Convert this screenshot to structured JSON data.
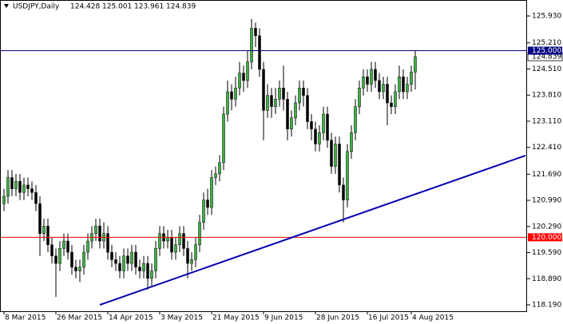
{
  "chart_data": {
    "type": "candlestick",
    "symbol": "USDJPY,Daily",
    "categories": [
      "8 Mar 2015",
      null,
      null,
      null,
      null,
      null,
      null,
      null,
      null,
      null,
      null,
      null,
      null,
      "26 Mar 2015",
      null,
      null,
      null,
      null,
      null,
      null,
      null,
      null,
      null,
      null,
      null,
      null,
      "14 Apr 2015",
      null,
      null,
      null,
      null,
      null,
      null,
      null,
      null,
      null,
      null,
      null,
      null,
      "3 May 2015",
      null,
      null,
      null,
      null,
      null,
      null,
      null,
      null,
      null,
      null,
      null,
      null,
      "21 May 2015",
      null,
      null,
      null,
      null,
      null,
      null,
      null,
      null,
      null,
      null,
      null,
      null,
      "9 Jun 2015",
      null,
      null,
      null,
      null,
      null,
      null,
      null,
      null,
      null,
      null,
      null,
      null,
      "28 Jun 2015",
      null,
      null,
      null,
      null,
      null,
      null,
      null,
      null,
      null,
      null,
      null,
      null,
      "16 Jul 2015",
      null,
      null,
      null,
      null,
      null,
      null,
      null,
      null,
      null,
      null,
      "4 Aug 2015",
      null
    ],
    "open": [
      120.9,
      121.1,
      121.6,
      121.3,
      121.5,
      121.2,
      121.4,
      121.3,
      121.2,
      120.9,
      120.1,
      120.3,
      119.8,
      119.5,
      119.3,
      119.7,
      119.9,
      119.6,
      119.2,
      119.1,
      119.2,
      119.6,
      119.9,
      120.1,
      120.3,
      119.9,
      120.1,
      119.6,
      119.4,
      119.3,
      119.1,
      119.5,
      119.3,
      119.6,
      119.2,
      119.1,
      119.3,
      118.9,
      119.1,
      119.7,
      120.1,
      119.9,
      120.0,
      119.6,
      119.8,
      120.1,
      119.7,
      119.3,
      119.4,
      119.8,
      120.4,
      121.0,
      120.8,
      121.6,
      121.7,
      122.0,
      123.3,
      123.9,
      123.7,
      124.0,
      124.4,
      124.2,
      124.7,
      125.6,
      125.4,
      124.5,
      123.4,
      123.8,
      123.5,
      123.7,
      124.0,
      123.7,
      122.9,
      123.2,
      123.6,
      124.0,
      123.8,
      123.1,
      122.9,
      122.5,
      122.8,
      123.3,
      122.6,
      121.9,
      122.5,
      121.4,
      121.0,
      122.3,
      122.8,
      123.5,
      124.0,
      124.3,
      124.1,
      124.5,
      124.2,
      123.9,
      124.1,
      123.6,
      123.5,
      123.9,
      124.3,
      123.9,
      124.1,
      124.428
    ],
    "high": [
      121.3,
      121.8,
      121.8,
      121.7,
      121.7,
      121.6,
      121.6,
      121.5,
      121.4,
      121.1,
      120.5,
      120.5,
      120.0,
      119.7,
      119.9,
      120.1,
      120.1,
      119.8,
      119.4,
      119.4,
      119.8,
      120.1,
      120.3,
      120.5,
      120.5,
      120.4,
      120.3,
      119.8,
      119.6,
      119.5,
      119.7,
      119.7,
      119.8,
      119.8,
      119.4,
      119.5,
      119.5,
      119.3,
      119.9,
      120.3,
      120.3,
      120.2,
      120.2,
      120.0,
      120.3,
      120.3,
      119.9,
      119.6,
      120.0,
      120.6,
      121.2,
      121.3,
      121.8,
      121.9,
      122.2,
      123.5,
      124.2,
      124.1,
      124.3,
      124.7,
      124.6,
      125.0,
      125.85,
      125.75,
      125.6,
      124.7,
      124.1,
      124.0,
      124.0,
      124.2,
      124.6,
      123.9,
      123.4,
      123.8,
      124.2,
      124.2,
      124.0,
      123.3,
      123.1,
      123.0,
      123.5,
      123.5,
      122.8,
      122.7,
      122.7,
      121.6,
      122.5,
      123.0,
      123.7,
      124.2,
      124.5,
      124.5,
      124.7,
      124.7,
      124.4,
      124.3,
      124.3,
      123.8,
      124.1,
      124.6,
      124.5,
      124.3,
      124.6,
      125.001
    ],
    "low": [
      120.7,
      120.9,
      121.1,
      121.1,
      121.0,
      121.0,
      121.1,
      121.0,
      120.7,
      119.5,
      119.9,
      119.6,
      119.3,
      118.4,
      119.1,
      119.5,
      119.4,
      119.0,
      118.9,
      118.8,
      119.0,
      119.4,
      119.7,
      119.9,
      119.7,
      119.7,
      119.4,
      119.2,
      119.1,
      118.9,
      118.9,
      119.1,
      119.1,
      119.0,
      118.9,
      118.9,
      118.6,
      118.7,
      118.9,
      119.5,
      119.7,
      119.7,
      119.4,
      119.4,
      119.6,
      119.5,
      118.9,
      119.1,
      119.2,
      119.6,
      120.2,
      120.6,
      120.6,
      121.4,
      121.5,
      121.8,
      123.1,
      123.4,
      123.5,
      123.8,
      123.9,
      124.0,
      124.5,
      125.1,
      124.3,
      122.6,
      123.2,
      123.2,
      123.3,
      123.5,
      123.4,
      122.6,
      122.7,
      123.0,
      123.4,
      123.5,
      122.9,
      122.6,
      122.3,
      122.3,
      122.6,
      122.4,
      121.7,
      121.7,
      121.2,
      120.4,
      120.8,
      122.1,
      122.6,
      123.3,
      123.8,
      123.9,
      123.9,
      124.0,
      123.7,
      123.7,
      123.0,
      123.3,
      123.3,
      123.7,
      123.7,
      123.7,
      123.9,
      123.961
    ],
    "close": [
      121.1,
      121.6,
      121.3,
      121.5,
      121.2,
      121.4,
      121.3,
      121.2,
      120.9,
      120.1,
      120.3,
      119.8,
      119.5,
      119.3,
      119.7,
      119.9,
      119.6,
      119.2,
      119.1,
      119.2,
      119.6,
      119.9,
      120.1,
      120.3,
      119.9,
      120.1,
      119.6,
      119.4,
      119.3,
      119.1,
      119.5,
      119.3,
      119.6,
      119.2,
      119.1,
      119.3,
      118.9,
      119.1,
      119.7,
      120.1,
      119.9,
      120.0,
      119.6,
      119.8,
      120.1,
      119.7,
      119.3,
      119.4,
      119.8,
      120.4,
      121.0,
      120.8,
      121.6,
      121.7,
      122.0,
      123.3,
      123.9,
      123.7,
      124.0,
      124.4,
      124.2,
      124.7,
      125.6,
      125.4,
      124.5,
      123.4,
      123.8,
      123.5,
      123.7,
      124.0,
      123.7,
      122.9,
      123.2,
      123.6,
      124.0,
      123.8,
      123.1,
      122.9,
      122.5,
      122.8,
      123.3,
      122.6,
      121.9,
      122.5,
      121.4,
      121.0,
      122.3,
      122.8,
      123.5,
      124.0,
      124.3,
      124.1,
      124.5,
      124.2,
      123.9,
      124.1,
      123.6,
      123.5,
      123.9,
      124.3,
      123.9,
      124.1,
      124.43,
      124.839
    ],
    "up_color": "#3cb043",
    "down_color": "#000000",
    "ylim": [
      118.019,
      126.358
    ],
    "yticks": [
      {
        "value": 125.93,
        "label": "125.930"
      },
      {
        "value": 125.21,
        "label": "125.210"
      },
      {
        "value": 124.51,
        "label": "124.510"
      },
      {
        "value": 123.81,
        "label": "123.810"
      },
      {
        "value": 123.11,
        "label": "123.110"
      },
      {
        "value": 122.41,
        "label": "122.410"
      },
      {
        "value": 121.69,
        "label": "121.690"
      },
      {
        "value": 120.99,
        "label": "120.990"
      },
      {
        "value": 120.29,
        "label": "120.290"
      },
      {
        "value": 119.59,
        "label": "119.590"
      },
      {
        "value": 118.89,
        "label": "118.890"
      },
      {
        "value": 118.19,
        "label": "118.190"
      }
    ],
    "hlines": [
      {
        "value": 125,
        "label": "125.000",
        "color": "#000080"
      },
      {
        "value": 120,
        "label": "120.000",
        "color": "#ff0000"
      }
    ],
    "trendline": {
      "x": [
        24,
        130.6
      ],
      "values": [
        118.19,
        122.19
      ],
      "color": "#0000b0"
    }
  }
}
